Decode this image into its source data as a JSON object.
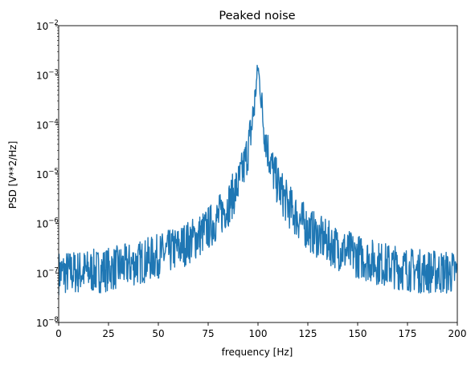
{
  "chart_data": {
    "type": "line",
    "title": "Peaked noise",
    "xlabel": "frequency [Hz]",
    "ylabel": "PSD [V**2/Hz]",
    "xlim": [
      0,
      200
    ],
    "ylim": [
      1e-08,
      0.01
    ],
    "yscale": "log",
    "grid": false,
    "legend": false,
    "x_ticks": [
      0,
      25,
      50,
      75,
      100,
      125,
      150,
      175,
      200
    ],
    "x_tick_labels": [
      "0",
      "25",
      "50",
      "75",
      "100",
      "125",
      "150",
      "175",
      "200"
    ],
    "y_ticks": [
      1e-08,
      1e-07,
      1e-06,
      1e-05,
      0.0001,
      0.001,
      0.01
    ],
    "y_tick_labels": [
      {
        "base": "10",
        "exp": "−8"
      },
      {
        "base": "10",
        "exp": "−7"
      },
      {
        "base": "10",
        "exp": "−6"
      },
      {
        "base": "10",
        "exp": "−5"
      },
      {
        "base": "10",
        "exp": "−4"
      },
      {
        "base": "10",
        "exp": "−3"
      },
      {
        "base": "10",
        "exp": "−2"
      }
    ],
    "series": [
      {
        "color": "#1f77b4",
        "envelope_x": [
          0,
          10,
          20,
          30,
          40,
          50,
          60,
          70,
          75,
          80,
          85,
          90,
          93,
          95,
          97,
          98,
          99,
          100,
          101,
          102,
          103,
          105,
          107,
          110,
          115,
          120,
          125,
          130,
          140,
          150,
          160,
          170,
          180,
          190,
          200
        ],
        "envelope_y": [
          1e-07,
          1.05e-07,
          1.1e-07,
          1.3e-07,
          1.6e-07,
          2.2e-07,
          3.2e-07,
          5.5e-07,
          8e-07,
          1.3e-06,
          2.4e-06,
          6e-06,
          1.4e-05,
          3.2e-05,
          0.0001,
          0.00022,
          0.00055,
          0.0015,
          0.0006,
          0.0002,
          9e-05,
          3e-05,
          1.4e-05,
          6e-06,
          2.4e-06,
          1.3e-06,
          8e-07,
          5.5e-07,
          3.2e-07,
          2.2e-07,
          1.6e-07,
          1.3e-07,
          1.1e-07,
          1.05e-07,
          1e-07
        ],
        "noise_spread_decades": 0.45,
        "sample_spacing_hz": 0.2
      }
    ]
  }
}
